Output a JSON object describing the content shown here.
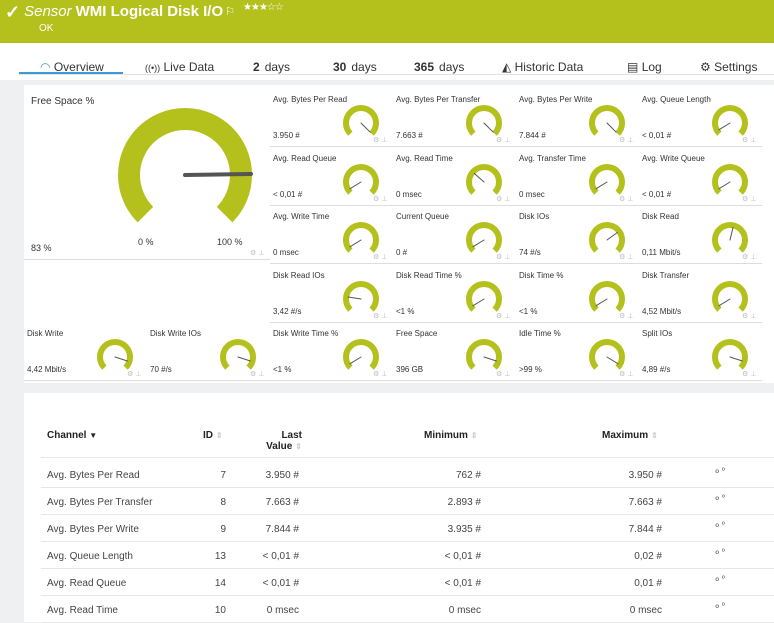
{
  "header": {
    "prefix": "Sensor",
    "title": "WMI Logical Disk I/O",
    "status": "OK",
    "rating": "★★★☆☆",
    "icons": {
      "status": "check-icon",
      "flag": "flag-icon"
    }
  },
  "tabs": [
    {
      "label": "Overview",
      "icon": "gauge-icon"
    },
    {
      "label": "Live Data",
      "icon": "broadcast-icon"
    },
    {
      "num": "2",
      "label": "days"
    },
    {
      "num": "30",
      "label": "days"
    },
    {
      "num": "365",
      "label": "days"
    },
    {
      "label": "Historic Data",
      "icon": "area-chart-icon"
    },
    {
      "label": "Log",
      "icon": "log-icon"
    },
    {
      "label": "Settings",
      "icon": "gear-icon"
    }
  ],
  "colors": {
    "accent": "#b4c11c",
    "tab_active": "#3b9bd6",
    "gauge": "#b4c11c"
  },
  "big_gauge": {
    "label": "Free Space %",
    "value": "83 %",
    "min": "0 %",
    "max": "100 %",
    "level": 0.83
  },
  "gauges": [
    {
      "label": "Avg. Bytes Per Read",
      "value": "3.950 #",
      "level": 1.0
    },
    {
      "label": "Avg. Bytes Per Transfer",
      "value": "7.663 #",
      "level": 1.0
    },
    {
      "label": "Avg. Bytes Per Write",
      "value": "7.844 #",
      "level": 1.0
    },
    {
      "label": "Avg. Queue Length",
      "value": "< 0,01 #",
      "level": 0.05
    },
    {
      "label": "Avg. Read Queue",
      "value": "< 0,01 #",
      "level": 0.05
    },
    {
      "label": "Avg. Read Time",
      "value": "0 msec",
      "level": 0.32
    },
    {
      "label": "Avg. Transfer Time",
      "value": "0 msec",
      "level": 0.05
    },
    {
      "label": "Avg. Write Queue",
      "value": "< 0,01 #",
      "level": 0.05
    },
    {
      "label": "Avg. Write Time",
      "value": "0 msec",
      "level": 0.05
    },
    {
      "label": "Current Queue",
      "value": "0 #",
      "level": 0.05
    },
    {
      "label": "Disk IOs",
      "value": "74 #/s",
      "level": 0.7
    },
    {
      "label": "Disk Read",
      "value": "0,11 Mbit/s",
      "level": 0.55
    },
    {
      "label": "Disk Read IOs",
      "value": "3,42 #/s",
      "level": 0.2
    },
    {
      "label": "Disk Read Time %",
      "value": "<1 %",
      "level": 0.05
    },
    {
      "label": "Disk Time %",
      "value": "<1 %",
      "level": 0.05
    },
    {
      "label": "Disk Transfer",
      "value": "4,52 Mbit/s",
      "level": 0.05
    },
    {
      "label": "Disk Write",
      "value": "4,42 Mbit/s",
      "level": 0.9
    },
    {
      "label": "Disk Write IOs",
      "value": "70 #/s",
      "level": 0.9
    },
    {
      "label": "Disk Write Time %",
      "value": "<1 %",
      "level": 0.05
    },
    {
      "label": "Free Space",
      "value": "396 GB",
      "level": 0.9
    },
    {
      "label": "Idle Time %",
      "value": ">99 %",
      "level": 0.95
    },
    {
      "label": "Split IOs",
      "value": "4,89 #/s",
      "level": 0.9
    }
  ],
  "table": {
    "headers": {
      "channel": "Channel",
      "id": "ID",
      "last": "Last",
      "last2": "Value",
      "min": "Minimum",
      "max": "Maximum"
    },
    "rows": [
      {
        "channel": "Avg. Bytes Per Read",
        "id": "7",
        "last": "3.950 #",
        "min": "762 #",
        "max": "3.950 #"
      },
      {
        "channel": "Avg. Bytes Per Transfer",
        "id": "8",
        "last": "7.663 #",
        "min": "2.893 #",
        "max": "7.663 #"
      },
      {
        "channel": "Avg. Bytes Per Write",
        "id": "9",
        "last": "7.844 #",
        "min": "3.935 #",
        "max": "7.844 #"
      },
      {
        "channel": "Avg. Queue Length",
        "id": "13",
        "last": "< 0,01 #",
        "min": "< 0,01 #",
        "max": "0,02 #"
      },
      {
        "channel": "Avg. Read Queue",
        "id": "14",
        "last": "< 0,01 #",
        "min": "< 0,01 #",
        "max": "0,01 #"
      },
      {
        "channel": "Avg. Read Time",
        "id": "10",
        "last": "0 msec",
        "min": "0 msec",
        "max": "0 msec"
      }
    ]
  }
}
